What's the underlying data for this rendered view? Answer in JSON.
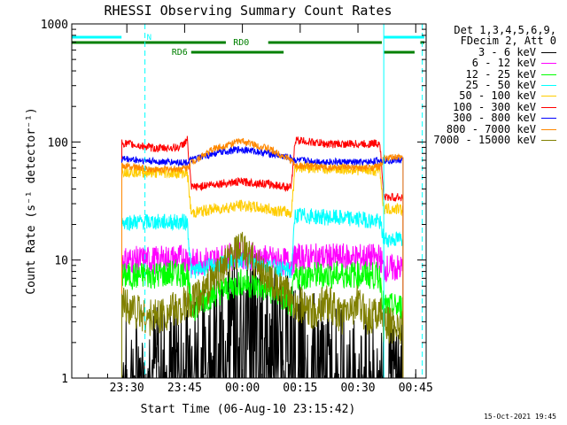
{
  "chart_data": {
    "type": "line",
    "title": "RHESSI Observing Summary Count Rates",
    "xlabel": "Start Time (06-Aug-10 23:15:42)",
    "ylabel": "Count Rate (s⁻¹ detector⁻¹)",
    "y_scale": "log",
    "ylim": [
      1,
      1000
    ],
    "yticks": [
      1,
      10,
      100,
      1000
    ],
    "xlim_minutes": [
      0,
      92
    ],
    "xticks": [
      {
        "label": "23:30",
        "minute": 14.3
      },
      {
        "label": "23:45",
        "minute": 29.3
      },
      {
        "label": "00:00",
        "minute": 44.3
      },
      {
        "label": "00:15",
        "minute": 59.3
      },
      {
        "label": "00:30",
        "minute": 74.3
      },
      {
        "label": "00:45",
        "minute": 89.3
      }
    ],
    "legend_header": [
      "Det 1,3,4,5,6,9,",
      "FDecim 2, Att 0"
    ],
    "series": [
      {
        "name": "3 - 6 keV",
        "color": "#000000",
        "x": [
          13,
          24,
          32,
          36,
          40,
          44,
          48,
          52,
          56,
          62,
          68,
          75,
          81,
          87
        ],
        "y": [
          1.1,
          1.4,
          1.8,
          2.6,
          3.5,
          4.5,
          4.2,
          3.3,
          2.4,
          1.8,
          1.3,
          1.1,
          1.1,
          1.1
        ]
      },
      {
        "name": "6 - 12 keV",
        "color": "#ff00ff",
        "x": [
          13,
          22,
          30,
          31,
          36,
          44,
          52,
          57,
          58,
          66,
          76,
          80,
          81,
          84,
          86
        ],
        "y": [
          10,
          10,
          10.5,
          9.5,
          10,
          11,
          10,
          9.5,
          10.5,
          10.5,
          10.5,
          10.5,
          8.5,
          8.5,
          8.5
        ]
      },
      {
        "name": "12 - 25 keV",
        "color": "#00ff00",
        "x": [
          13,
          22,
          30,
          31,
          36,
          44,
          52,
          57,
          58,
          66,
          76,
          80,
          81,
          84,
          86
        ],
        "y": [
          7.2,
          7.5,
          7.8,
          3.8,
          5,
          6.5,
          5.5,
          4.2,
          7.2,
          7.5,
          7.5,
          7.3,
          4,
          4,
          4
        ]
      },
      {
        "name": "25 - 50 keV",
        "color": "#00ffff",
        "x": [
          13,
          22,
          30,
          31,
          37,
          44,
          51,
          57,
          58,
          66,
          76,
          80,
          81,
          84,
          86
        ],
        "y": [
          21,
          21,
          21,
          8,
          9,
          10,
          9,
          8,
          24,
          23,
          22,
          21,
          15,
          15,
          15
        ]
      },
      {
        "name": "50 - 100 keV",
        "color": "#ffcc00",
        "x": [
          13,
          22,
          30,
          31,
          37,
          44,
          51,
          57,
          58,
          66,
          76,
          80,
          81,
          84,
          86
        ],
        "y": [
          57,
          55,
          55,
          25,
          27,
          29,
          27,
          25,
          62,
          60,
          58,
          57,
          27,
          27,
          27
        ]
      },
      {
        "name": "100 - 300 keV",
        "color": "#ff0000",
        "x": [
          13,
          22,
          28,
          30,
          31,
          37,
          44,
          51,
          57,
          58,
          66,
          76,
          80,
          81,
          84,
          86
        ],
        "y": [
          98,
          88,
          90,
          104,
          41,
          44,
          46,
          44,
          41,
          104,
          96,
          96,
          98,
          34,
          34,
          34
        ]
      },
      {
        "name": "300 - 800 keV",
        "color": "#0000ff",
        "x": [
          13,
          22,
          30,
          31,
          37,
          44,
          51,
          57,
          58,
          66,
          76,
          80,
          81,
          84,
          86
        ],
        "y": [
          72,
          68,
          67,
          70,
          80,
          87,
          80,
          73,
          70,
          68,
          67,
          70,
          70,
          70,
          70
        ]
      },
      {
        "name": "800 - 7000 keV",
        "color": "#ff8800",
        "x": [
          13,
          22,
          30,
          31,
          37,
          44,
          51,
          57,
          58,
          66,
          76,
          80,
          81,
          84,
          86
        ],
        "y": [
          63,
          58,
          60,
          67,
          88,
          102,
          88,
          70,
          63,
          61,
          60,
          62,
          72,
          74,
          73
        ]
      },
      {
        "name": "7000 - 15000 keV",
        "color": "#808000",
        "x": [
          13,
          20,
          27,
          30,
          33,
          37,
          41,
          44,
          47,
          51,
          55,
          58,
          62,
          66,
          70,
          74,
          77,
          80,
          81,
          84,
          86
        ],
        "y": [
          4.5,
          3.2,
          3.8,
          4.2,
          4.8,
          7,
          10,
          12.5,
          10,
          7,
          5.2,
          4.5,
          3.5,
          4.5,
          3.3,
          4.3,
          3.3,
          3.8,
          2.8,
          2.8,
          2.8
        ]
      }
    ],
    "drop_to_floor": {
      "start_minute": 13,
      "end_minute": 86
    },
    "annotations": [
      {
        "text": "N",
        "color": "#00ffff",
        "level": "top",
        "x_range": [
          0,
          19
        ]
      },
      {
        "text": "RD0",
        "color": "#008000",
        "level": "upper",
        "x_range": [
          0,
          90
        ]
      },
      {
        "text": "RD6",
        "color": "#008000",
        "level": "lower",
        "x_range": [
          31,
          89
        ]
      }
    ],
    "vertical_markers": [
      {
        "color": "#00ffff",
        "style": "solid",
        "minute": 0
      },
      {
        "color": "#00ffff",
        "style": "dashed",
        "minute": 19
      },
      {
        "color": "#00ffff",
        "style": "solid",
        "minute": 81
      },
      {
        "color": "#00ffff",
        "style": "dashed",
        "minute": 91
      }
    ],
    "grid": false,
    "legend_position": "right"
  },
  "footer_timestamp": "15-Oct-2021 19:45"
}
